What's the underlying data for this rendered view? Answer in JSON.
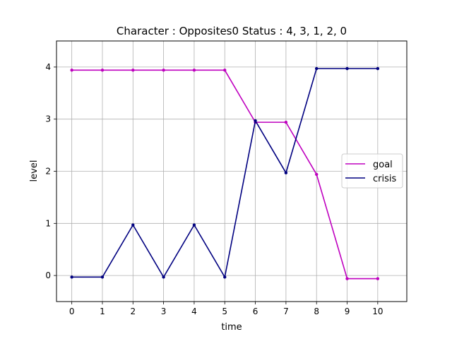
{
  "chart_data": {
    "type": "line",
    "title": "Character : Opposites0 Status : 4, 3, 1, 2, 0",
    "xlabel": "time",
    "ylabel": "level",
    "x": [
      0,
      1,
      2,
      3,
      4,
      5,
      6,
      7,
      8,
      9,
      10
    ],
    "xticks": [
      "0",
      "1",
      "2",
      "3",
      "4",
      "5",
      "6",
      "7",
      "8",
      "9",
      "10"
    ],
    "yticks": [
      "0",
      "1",
      "2",
      "3",
      "4"
    ],
    "xlim": [
      -0.5,
      10.95
    ],
    "ylim": [
      -0.5,
      4.5
    ],
    "grid": true,
    "legend_position": "center-right",
    "series": [
      {
        "name": "goal",
        "color": "#bf00bf",
        "values": [
          3.94,
          3.94,
          3.94,
          3.94,
          3.94,
          3.94,
          2.94,
          2.94,
          1.94,
          -0.06,
          -0.06
        ]
      },
      {
        "name": "crisis",
        "color": "#000080",
        "values": [
          -0.03,
          -0.03,
          0.97,
          -0.03,
          0.97,
          -0.03,
          2.97,
          1.97,
          3.97,
          3.97,
          3.97
        ]
      }
    ]
  }
}
